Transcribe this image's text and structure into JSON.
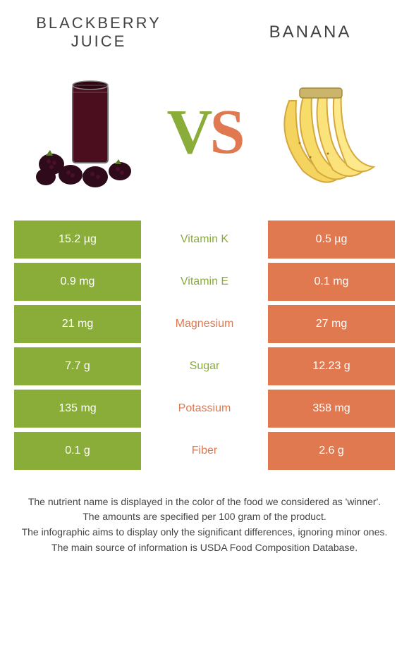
{
  "header": {
    "left_title": "Blackberry juice",
    "right_title": "banana"
  },
  "vs": {
    "v": "V",
    "s": "S"
  },
  "colors": {
    "left": "#8aad3a",
    "right": "#e07850",
    "row_gap_bg": "#ffffff"
  },
  "comparison": {
    "rows": [
      {
        "left": "15.2 µg",
        "label": "Vitamin K",
        "right": "0.5 µg",
        "winner": "left"
      },
      {
        "left": "0.9 mg",
        "label": "Vitamin E",
        "right": "0.1 mg",
        "winner": "left"
      },
      {
        "left": "21 mg",
        "label": "Magnesium",
        "right": "27 mg",
        "winner": "right"
      },
      {
        "left": "7.7 g",
        "label": "Sugar",
        "right": "12.23 g",
        "winner": "left"
      },
      {
        "left": "135 mg",
        "label": "Potassium",
        "right": "358 mg",
        "winner": "right"
      },
      {
        "left": "0.1 g",
        "label": "Fiber",
        "right": "2.6 g",
        "winner": "right"
      }
    ]
  },
  "footer": {
    "line1": "The nutrient name is displayed in the color of the food we considered as 'winner'.",
    "line2": "The amounts are specified per 100 gram of the product.",
    "line3": "The infographic aims to display only the significant differences, ignoring minor ones.",
    "line4": "The main source of information is USDA Food Composition Database."
  }
}
